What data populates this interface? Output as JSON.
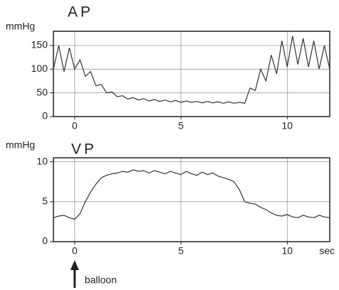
{
  "chart_data": [
    {
      "type": "line",
      "title": "AP",
      "y_label": "mmHg",
      "x": [
        -1,
        -0.75,
        -0.5,
        -0.25,
        0,
        0.25,
        0.5,
        0.75,
        1,
        1.25,
        1.5,
        1.75,
        2,
        2.25,
        2.5,
        2.75,
        3,
        3.25,
        3.5,
        3.75,
        4,
        4.25,
        4.5,
        4.75,
        5,
        5.25,
        5.5,
        5.75,
        6,
        6.25,
        6.5,
        6.75,
        7,
        7.25,
        7.5,
        7.75,
        8,
        8.25,
        8.5,
        8.75,
        9,
        9.25,
        9.5,
        9.75,
        10,
        10.25,
        10.5,
        10.75,
        11,
        11.25,
        11.5,
        11.75,
        12
      ],
      "values": [
        100,
        150,
        95,
        145,
        100,
        120,
        85,
        95,
        65,
        68,
        50,
        52,
        42,
        44,
        37,
        40,
        35,
        38,
        33,
        36,
        32,
        35,
        31,
        34,
        30,
        33,
        30,
        32,
        29,
        32,
        29,
        31,
        28,
        31,
        28,
        30,
        28,
        60,
        55,
        100,
        75,
        130,
        90,
        160,
        105,
        170,
        110,
        165,
        105,
        160,
        100,
        150,
        100
      ],
      "color": "#333333",
      "xlim": [
        -1,
        12
      ],
      "ylim": [
        0,
        180
      ],
      "xticks": [
        0,
        5,
        10
      ],
      "yticks": [
        0,
        50,
        100,
        150
      ],
      "grid": true
    },
    {
      "type": "line",
      "title": "VP",
      "y_label": "mmHg",
      "x_label": "sec",
      "x": [
        -1,
        -0.75,
        -0.5,
        -0.25,
        0,
        0.25,
        0.5,
        0.75,
        1,
        1.25,
        1.5,
        1.75,
        2,
        2.25,
        2.5,
        2.75,
        3,
        3.25,
        3.5,
        3.75,
        4,
        4.25,
        4.5,
        4.75,
        5,
        5.25,
        5.5,
        5.75,
        6,
        6.25,
        6.5,
        6.75,
        7,
        7.25,
        7.5,
        7.75,
        8,
        8.25,
        8.5,
        8.75,
        9,
        9.25,
        9.5,
        9.75,
        10,
        10.25,
        10.5,
        10.75,
        11,
        11.25,
        11.5,
        11.75,
        12
      ],
      "values": [
        3,
        3.2,
        3.3,
        3,
        2.8,
        3.5,
        5,
        6.2,
        7.2,
        8,
        8.3,
        8.5,
        8.6,
        8.8,
        8.7,
        9,
        8.8,
        8.9,
        8.6,
        8.9,
        8.7,
        8.5,
        8.8,
        8.6,
        8.4,
        8.8,
        8.5,
        8.3,
        8.7,
        8.4,
        8.6,
        8.2,
        8,
        7.8,
        7.5,
        6.5,
        5,
        4.8,
        4.7,
        4.3,
        4,
        3.6,
        3.3,
        3.2,
        3.4,
        3.1,
        3,
        3.3,
        3.1,
        3,
        3.3,
        3.1,
        3
      ],
      "color": "#333333",
      "xlim": [
        -1,
        12
      ],
      "ylim": [
        0,
        10.5
      ],
      "xticks": [
        0,
        5,
        10
      ],
      "yticks": [
        0,
        5,
        10
      ],
      "grid": true,
      "annotation": {
        "text": "balloon",
        "x": 0
      }
    }
  ]
}
